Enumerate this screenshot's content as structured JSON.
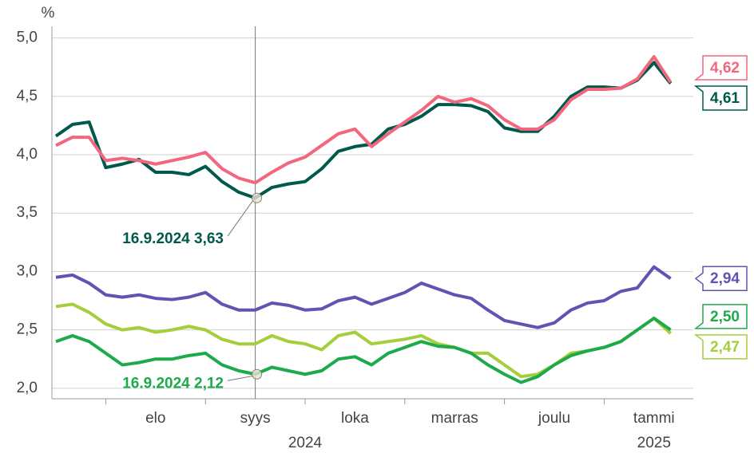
{
  "chart_data": {
    "type": "line",
    "y_label": "%",
    "categories": [
      null,
      null,
      null,
      null,
      null,
      null,
      "elo",
      null,
      null,
      null,
      null,
      null,
      "syys",
      null,
      null,
      null,
      null,
      null,
      "loka",
      null,
      null,
      null,
      null,
      null,
      "marras",
      null,
      null,
      null,
      null,
      null,
      "joulu",
      null,
      null,
      null,
      null,
      null,
      "tammi",
      null
    ],
    "year_labels": [
      null,
      null,
      null,
      null,
      null,
      null,
      null,
      null,
      null,
      null,
      null,
      null,
      null,
      null,
      null,
      "2024",
      null,
      null,
      null,
      null,
      null,
      null,
      null,
      null,
      null,
      null,
      null,
      null,
      null,
      null,
      null,
      null,
      null,
      null,
      null,
      null,
      "2025",
      null
    ],
    "series": [
      {
        "name": "dark",
        "color": "#00594a",
        "end_label": "4,61",
        "values": [
          4.16,
          4.26,
          4.28,
          3.89,
          3.92,
          3.96,
          3.85,
          3.85,
          3.83,
          3.9,
          3.77,
          3.68,
          3.63,
          3.72,
          3.75,
          3.77,
          3.88,
          4.03,
          4.07,
          4.09,
          4.22,
          4.26,
          4.33,
          4.43,
          4.43,
          4.42,
          4.37,
          4.23,
          4.2,
          4.2,
          4.33,
          4.5,
          4.58,
          4.58,
          4.57,
          4.64,
          4.79,
          4.61
        ]
      },
      {
        "name": "pink",
        "color": "#f2677e",
        "end_label": "4,62",
        "values": [
          4.08,
          4.15,
          4.15,
          3.95,
          3.97,
          3.95,
          3.92,
          3.95,
          3.98,
          4.02,
          3.88,
          3.8,
          3.76,
          3.85,
          3.93,
          3.98,
          4.08,
          4.18,
          4.22,
          4.07,
          4.18,
          4.28,
          4.38,
          4.5,
          4.45,
          4.48,
          4.42,
          4.3,
          4.22,
          4.22,
          4.3,
          4.47,
          4.56,
          4.56,
          4.57,
          4.65,
          4.84,
          4.62
        ]
      },
      {
        "name": "purple",
        "color": "#6452b3",
        "end_label": "2,94",
        "values": [
          2.95,
          2.97,
          2.9,
          2.8,
          2.78,
          2.8,
          2.77,
          2.76,
          2.78,
          2.82,
          2.72,
          2.67,
          2.67,
          2.73,
          2.71,
          2.67,
          2.68,
          2.75,
          2.78,
          2.72,
          2.77,
          2.82,
          2.9,
          2.85,
          2.8,
          2.77,
          2.67,
          2.58,
          2.55,
          2.52,
          2.56,
          2.67,
          2.73,
          2.75,
          2.83,
          2.86,
          3.04,
          2.94
        ]
      },
      {
        "name": "lightgreen",
        "color": "#a5ce3c",
        "end_label": "2,47",
        "values": [
          2.7,
          2.72,
          2.65,
          2.55,
          2.5,
          2.52,
          2.48,
          2.5,
          2.53,
          2.5,
          2.42,
          2.38,
          2.38,
          2.45,
          2.4,
          2.38,
          2.33,
          2.45,
          2.48,
          2.38,
          2.4,
          2.42,
          2.45,
          2.38,
          2.35,
          2.3,
          2.3,
          2.2,
          2.1,
          2.12,
          2.2,
          2.3,
          2.32,
          2.35,
          2.4,
          2.5,
          2.6,
          2.47
        ]
      },
      {
        "name": "green",
        "color": "#1daa4a",
        "end_label": "2,50",
        "values": [
          2.4,
          2.45,
          2.4,
          2.3,
          2.2,
          2.22,
          2.25,
          2.25,
          2.28,
          2.3,
          2.2,
          2.15,
          2.12,
          2.18,
          2.15,
          2.12,
          2.15,
          2.25,
          2.27,
          2.2,
          2.3,
          2.35,
          2.4,
          2.36,
          2.35,
          2.3,
          2.2,
          2.12,
          2.05,
          2.1,
          2.2,
          2.28,
          2.32,
          2.35,
          2.4,
          2.5,
          2.6,
          2.5
        ]
      }
    ],
    "annotations": [
      {
        "text": "16.9.2024 3,63",
        "series": 0,
        "color": "#00594a"
      },
      {
        "text": "16.9.2024 2,12",
        "series": 4,
        "color": "#1daa4a"
      }
    ],
    "ylim": [
      1.91,
      5.1
    ],
    "yticks": [
      {
        "value": 2,
        "label": "2,0"
      },
      {
        "value": 2.5,
        "label": "2,5"
      },
      {
        "value": 3,
        "label": "3,0"
      },
      {
        "value": 3.5,
        "label": "3,5"
      },
      {
        "value": 4,
        "label": "4,0"
      },
      {
        "value": 4.5,
        "label": "4,5"
      },
      {
        "value": 5,
        "label": "5,0"
      }
    ],
    "grid": true
  }
}
